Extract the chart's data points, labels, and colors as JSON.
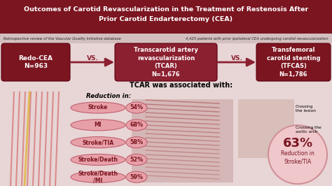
{
  "title_line1": "Outcomes of Carotid Revascularization in the Treatment of Restenosis After",
  "title_line2": "Prior Carotid Endarterectomy (CEA)",
  "subtitle_left": "Retrospective review of the Vascular Quality Initiative database",
  "subtitle_right": "4,425 patients with prior ipsilateral CEA undergoing carotid revascularization",
  "box1_text": "Redo-CEA\nN=963",
  "box2_text": "Transcarotid artery\nrevascularization\n(TCAR)\nN=1,676",
  "box3_text": "Transfemoral\ncarotid stenting\n(TFCAS)\nN=1,786",
  "vs_text": "VS.",
  "tcar_assoc_title": "TCAR was associated with:",
  "reduction_title": "Reduction in:",
  "outcomes": [
    "Stroke",
    "MI",
    "Stroke/TIA",
    "Stroke/Death",
    "Stroke/Death\n/MI"
  ],
  "percentages": [
    "54%",
    "68%",
    "58%",
    "52%",
    "59%"
  ],
  "circle_text_line1": "63%",
  "circle_text_line2": "Reduction in",
  "circle_text_line3": "Stroke/TIA",
  "crossing_lesion": "Crossing\nthe lesion",
  "crossing_arch": "Crossing the\naortic arch",
  "bg_color": "#e8d5d5",
  "title_bg": "#7B1520",
  "subtitle_bg": "#d4bfbf",
  "dark_red": "#7B1520",
  "medium_red": "#8B2030",
  "light_pink": "#E8A0A8",
  "very_light_pink": "#F0C8CC",
  "arrow_color": "#8B2030",
  "white": "#ffffff",
  "black": "#111111"
}
